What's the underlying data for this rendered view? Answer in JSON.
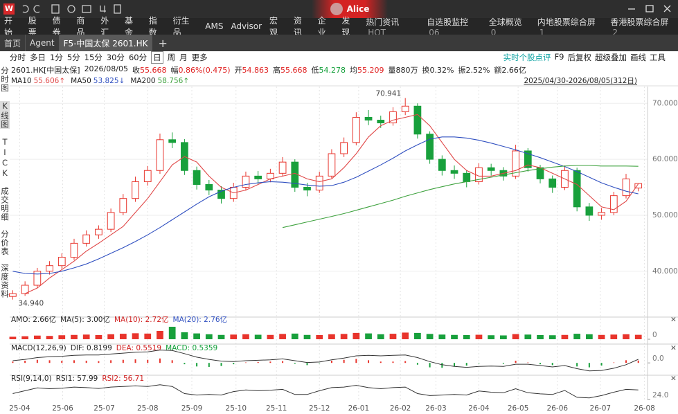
{
  "app": {
    "logo": "W",
    "user": "Alice"
  },
  "menu": {
    "left": [
      "开始",
      "股票",
      "债券",
      "商品",
      "外汇",
      "基金",
      "指数",
      "衍生品",
      "AMS",
      "Advisor",
      "宏观",
      "资讯",
      "企业",
      "发现"
    ],
    "right": [
      {
        "label": "热门资讯",
        "badge": "HOT"
      },
      {
        "label": "自选股监控",
        "badge": "06"
      },
      {
        "label": "全球概览",
        "badge": "0"
      },
      {
        "label": "内地股票综合屏",
        "badge": "1"
      },
      {
        "label": "香港股票综合屏",
        "badge": "2"
      }
    ]
  },
  "tabs": [
    "首页",
    "Agent",
    "F5-中国太保 2601.HK"
  ],
  "active_tab": 2,
  "periods": [
    "分时",
    "多日",
    "1分",
    "5分",
    "15分",
    "30分",
    "60分",
    "日",
    "周",
    "月",
    "更多"
  ],
  "active_period": 7,
  "tools": [
    {
      "label": "实时个股点评",
      "color": "#12a4a4"
    },
    {
      "label": "F9",
      "color": "#222"
    },
    {
      "label": "后复权",
      "color": "#222"
    },
    {
      "label": "超级叠加",
      "color": "#222"
    },
    {
      "label": "画线",
      "color": "#222"
    },
    {
      "label": "工具",
      "color": "#222"
    }
  ],
  "side_tabs": [
    "分时图",
    "K线图",
    "TICK",
    "成交明细",
    "分价表",
    "深度资料"
  ],
  "active_side_tab": 1,
  "quote": [
    {
      "label": "2601.HK[中国太保]",
      "value": "",
      "color": "#222"
    },
    {
      "label": "2026/08/05",
      "value": "",
      "color": "#222"
    },
    {
      "label": "收",
      "value": "55.668",
      "color": "#e02020"
    },
    {
      "label": "幅",
      "value": "0.86%(0.475)",
      "color": "#e02020"
    },
    {
      "label": "开",
      "value": "54.863",
      "color": "#e02020"
    },
    {
      "label": "高",
      "value": "55.668",
      "color": "#e02020"
    },
    {
      "label": "低",
      "value": "54.278",
      "color": "#13a03a"
    },
    {
      "label": "均",
      "value": "55.209",
      "color": "#e02020"
    },
    {
      "label": "量",
      "value": "880万",
      "color": "#222"
    },
    {
      "label": "换",
      "value": "0.32%",
      "color": "#222"
    },
    {
      "label": "振",
      "value": "2.52%",
      "color": "#222"
    },
    {
      "label": "额",
      "value": "2.66亿",
      "color": "#222"
    }
  ],
  "date_range": "2025/04/30-2026/08/05(312日)",
  "chart_data": {
    "type": "candlestick",
    "up_color": "#e8342c",
    "down_color": "#18a03c",
    "open": [
      35.5,
      36.0,
      37.5,
      40.0,
      41.0,
      42.5,
      45.0,
      46.5,
      47.5,
      50.5,
      53.0,
      56.0,
      58.0,
      63.5,
      63.0,
      58.0,
      55.5,
      54.5,
      53.0,
      55.0,
      57.0,
      56.5,
      57.5,
      59.5,
      55.0,
      54.5,
      57.0,
      61.0,
      63.0,
      67.5,
      67.0,
      66.5,
      68.5,
      69.5,
      64.5,
      60.0,
      58.0,
      57.5,
      56.0,
      58.5,
      58.0,
      57.0,
      61.5,
      58.5,
      56.5,
      55.0,
      58.0,
      51.5,
      50.0,
      50.5,
      53.5,
      54.863
    ],
    "high": [
      36.6,
      38.2,
      40.6,
      41.8,
      43.2,
      45.8,
      47.3,
      48.2,
      51.2,
      53.8,
      56.9,
      58.8,
      64.6,
      64.8,
      63.6,
      58.7,
      56.3,
      55.2,
      55.8,
      57.8,
      57.9,
      58.3,
      60.4,
      60.0,
      55.8,
      57.8,
      61.8,
      63.9,
      68.4,
      68.8,
      67.8,
      69.3,
      70.941,
      70.0,
      65.0,
      60.7,
      58.9,
      58.1,
      59.3,
      59.2,
      58.6,
      62.6,
      62.0,
      59.0,
      57.1,
      58.9,
      58.5,
      52.2,
      51.3,
      54.2,
      57.4,
      55.668
    ],
    "low": [
      34.94,
      35.6,
      37.0,
      39.4,
      40.4,
      42.0,
      44.4,
      45.8,
      47.0,
      50.0,
      52.4,
      55.3,
      57.4,
      62.0,
      57.2,
      54.6,
      53.6,
      52.1,
      52.4,
      54.4,
      55.6,
      55.9,
      57.0,
      54.2,
      53.4,
      54.0,
      56.6,
      60.4,
      62.5,
      66.1,
      65.6,
      66.0,
      67.9,
      63.7,
      59.2,
      57.1,
      56.5,
      55.0,
      55.5,
      57.1,
      56.2,
      56.5,
      57.8,
      55.7,
      54.0,
      54.5,
      50.7,
      49.0,
      49.2,
      50.0,
      53.0,
      54.278
    ],
    "close": [
      36.0,
      37.5,
      40.0,
      41.0,
      42.5,
      45.0,
      46.5,
      47.5,
      50.5,
      53.0,
      56.0,
      58.0,
      63.5,
      63.0,
      58.0,
      55.5,
      54.5,
      53.0,
      55.0,
      57.0,
      56.5,
      57.5,
      59.5,
      55.0,
      54.5,
      57.0,
      61.0,
      63.0,
      67.5,
      67.0,
      66.5,
      68.5,
      69.5,
      64.5,
      60.0,
      58.0,
      57.5,
      56.0,
      58.5,
      58.0,
      57.0,
      61.5,
      58.5,
      56.5,
      55.0,
      58.0,
      51.5,
      50.0,
      50.5,
      53.5,
      56.5,
      55.668
    ],
    "series": [
      {
        "name": "MA10",
        "value_label": "55.606↑",
        "color": "#e04848",
        "values": [
          null,
          36,
          37,
          38.8,
          40.3,
          41.8,
          43.6,
          45,
          46.5,
          48,
          50.5,
          53,
          56,
          59,
          60.5,
          59.5,
          57,
          55,
          54,
          54.5,
          55.5,
          56.5,
          57,
          57.5,
          56.5,
          56,
          56.5,
          58.5,
          61,
          64,
          66,
          67,
          67.5,
          68,
          66,
          63,
          60,
          58,
          57,
          57,
          57.5,
          58,
          59,
          58.5,
          57.5,
          56.5,
          55.5,
          53.5,
          51.5,
          51,
          52.5,
          55.606
        ]
      },
      {
        "name": "MA50",
        "value_label": "53.825↓",
        "color": "#2f4fc0",
        "values": [
          40,
          39.6,
          39.5,
          39.6,
          40,
          40.6,
          41.3,
          42.2,
          43.2,
          44.2,
          45.3,
          46.5,
          47.8,
          49.2,
          50.6,
          52,
          53.3,
          54.3,
          55,
          55.5,
          55.8,
          56,
          55.9,
          55.7,
          55.4,
          55.2,
          55.3,
          55.9,
          56.8,
          57.9,
          59,
          60.2,
          61.5,
          62.6,
          63.6,
          64,
          64,
          63.8,
          63.4,
          62.9,
          62.3,
          61.7,
          61,
          60.3,
          59.5,
          58.7,
          57.8,
          56.8,
          55.8,
          55,
          54.3,
          53.825
        ]
      },
      {
        "name": "MA200",
        "value_label": "58.756↑",
        "color": "#3ea23e",
        "values": [
          null,
          null,
          null,
          null,
          null,
          null,
          null,
          null,
          null,
          null,
          null,
          null,
          null,
          null,
          null,
          null,
          null,
          null,
          null,
          null,
          null,
          null,
          47.8,
          48.3,
          48.8,
          49.3,
          49.8,
          50.3,
          50.9,
          51.5,
          52.1,
          52.7,
          53.4,
          54.0,
          54.6,
          55.1,
          55.6,
          56.0,
          56.4,
          56.8,
          57.2,
          57.6,
          58.0,
          58.3,
          58.6,
          58.8,
          58.9,
          58.9,
          58.8,
          58.8,
          58.8,
          58.756
        ]
      }
    ],
    "annotations": [
      {
        "label": "70.941",
        "at": "high",
        "index": 32
      },
      {
        "label": "34.940",
        "at": "low",
        "index": 0
      }
    ],
    "xlim": [
      -0.25,
      51.75
    ],
    "xticks": [
      {
        "value": 0.56,
        "label": "25-04"
      },
      {
        "value": 4.07,
        "label": "25-06"
      },
      {
        "value": 7.46,
        "label": "25-07"
      },
      {
        "value": 11.0,
        "label": "25-08"
      },
      {
        "value": 14.6,
        "label": "25-09"
      },
      {
        "value": 18.2,
        "label": "25-10"
      },
      {
        "value": 21.5,
        "label": "25-11"
      },
      {
        "value": 25.0,
        "label": "25-12"
      },
      {
        "value": 28.2,
        "label": "26-01"
      },
      {
        "value": 31.6,
        "label": "26-02"
      },
      {
        "value": 34.5,
        "label": "26-03"
      },
      {
        "value": 38.0,
        "label": "26-04"
      },
      {
        "value": 41.2,
        "label": "26-05"
      },
      {
        "value": 44.4,
        "label": "26-06"
      },
      {
        "value": 47.9,
        "label": "26-07"
      },
      {
        "value": 51.5,
        "label": "26-08"
      }
    ],
    "ylim": [
      32.8,
      73
    ],
    "yticks": [
      {
        "value": 70,
        "label": "70.000"
      },
      {
        "value": 60,
        "label": "60.000"
      },
      {
        "value": 50,
        "label": "50.000"
      },
      {
        "value": 40,
        "label": "40.000"
      }
    ],
    "grid": true,
    "volume": {
      "legend": [
        {
          "text": "AMO: 2.66亿",
          "color": "#222"
        },
        {
          "text": "MA(5): 3.00亿",
          "color": "#222"
        },
        {
          "text": "MA(10): 2.72亿",
          "color": "#d02020"
        },
        {
          "text": "MA(20): 2.76亿",
          "color": "#2f4fc0"
        }
      ],
      "values": [
        1.5,
        1.8,
        2.2,
        2,
        2.4,
        2.6,
        2.8,
        2.5,
        3,
        3.3,
        3.6,
        3.4,
        5,
        7.5,
        4.2,
        3.5,
        3,
        2.6,
        2.8,
        3,
        2.7,
        2.6,
        3.2,
        3.4,
        2.6,
        2.5,
        3,
        3.2,
        3.8,
        3.5,
        3,
        3.3,
        4,
        3.8,
        3.2,
        2.8,
        2.6,
        2.5,
        2.7,
        2.4,
        2.3,
        3.1,
        2.8,
        2.5,
        2.4,
        2.6,
        3.3,
        3,
        2.6,
        2.8,
        3,
        2.66
      ],
      "ylim": [
        0,
        10
      ],
      "yticks": [
        0
      ]
    },
    "macd": {
      "legend": [
        {
          "text": "MACD(12,26,9)",
          "color": "#222"
        },
        {
          "text": "DIF: 0.8199",
          "color": "#222"
        },
        {
          "text": "DEA: 0.5519",
          "color": "#d02020"
        },
        {
          "text": "MACD: 0.5359",
          "color": "#13a03a"
        }
      ],
      "hist": [
        0.3,
        0.5,
        0.7,
        0.6,
        0.5,
        0.6,
        0.5,
        0.4,
        0.6,
        0.7,
        0.8,
        0.7,
        1.0,
        0.6,
        -0.3,
        -0.8,
        -0.9,
        -0.7,
        -0.3,
        0.1,
        0.2,
        0.3,
        0.4,
        -0.2,
        -0.5,
        -0.1,
        0.5,
        0.7,
        0.9,
        0.6,
        0.3,
        0.3,
        0.4,
        -0.4,
        -1.0,
        -1.1,
        -0.8,
        -0.6,
        -0.1,
        0,
        -0.2,
        0.5,
        0.1,
        -0.3,
        -0.5,
        0,
        -0.8,
        -1.0,
        -0.6,
        0.1,
        0.6,
        0.5359
      ],
      "dif": [
        0.5,
        0.8,
        1.2,
        1.4,
        1.5,
        1.7,
        1.8,
        1.8,
        2,
        2.2,
        2.4,
        2.5,
        2.9,
        2.8,
        2.1,
        1.3,
        0.8,
        0.4,
        0.3,
        0.5,
        0.6,
        0.7,
        0.9,
        0.5,
        0.1,
        0.2,
        0.7,
        1.1,
        1.6,
        1.7,
        1.6,
        1.7,
        1.8,
        1.2,
        0.3,
        -0.4,
        -0.8,
        -1,
        -0.8,
        -0.7,
        -0.8,
        -0.3,
        -0.3,
        -0.6,
        -0.9,
        -0.6,
        -1.3,
        -1.8,
        -1.7,
        -1.2,
        -0.4,
        0.8199
      ],
      "ylim": [
        -2,
        3
      ],
      "yticks": [
        {
          "value": 0,
          "label": "0.0"
        }
      ]
    },
    "rsi": {
      "legend": [
        {
          "text": "RSI(9,14,0)",
          "color": "#222"
        },
        {
          "text": "RSI1: 57.99",
          "color": "#222"
        },
        {
          "text": "RSI2: 56.71",
          "color": "#d02020"
        }
      ],
      "values": [
        45,
        55,
        65,
        62,
        64,
        68,
        66,
        63,
        68,
        70,
        72,
        70,
        76,
        70,
        45,
        40,
        42,
        40,
        52,
        58,
        55,
        57,
        60,
        42,
        42,
        55,
        66,
        68,
        74,
        66,
        62,
        66,
        68,
        45,
        38,
        40,
        42,
        40,
        54,
        50,
        48,
        62,
        48,
        44,
        42,
        56,
        32,
        30,
        38,
        50,
        60,
        57.99
      ],
      "ylim": [
        22,
        90
      ],
      "yticks": [
        {
          "value": 24,
          "label": "24.0"
        }
      ]
    }
  }
}
